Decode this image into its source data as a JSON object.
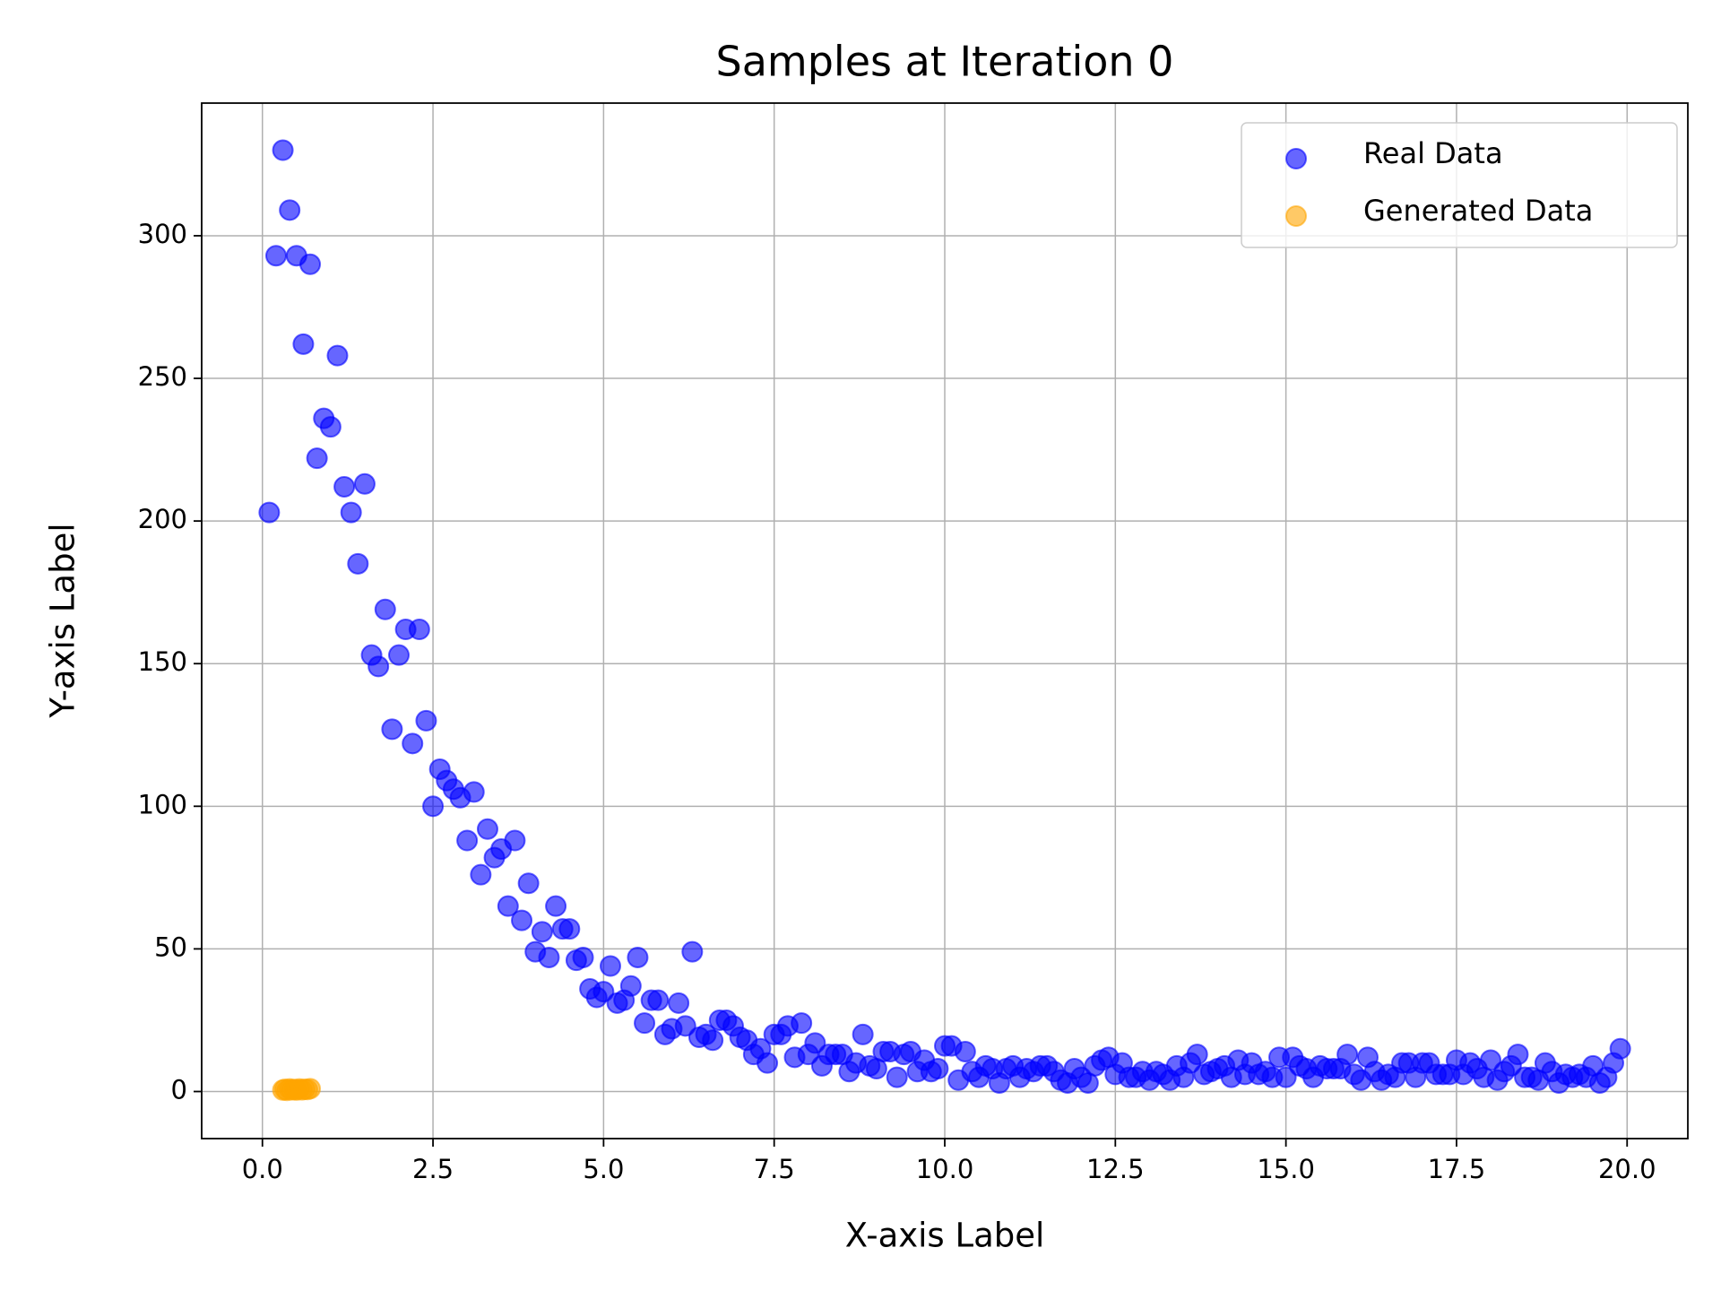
{
  "chart_data": {
    "type": "scatter",
    "title": "Samples at Iteration 0",
    "x_label": "X-axis Label",
    "y_label": "Y-axis Label",
    "xlim": [
      -0.89,
      20.89
    ],
    "ylim": [
      -16.5,
      346.5
    ],
    "xticks": [
      {
        "value": 0,
        "label": "0.0"
      },
      2.5,
      {
        "value": 5,
        "label": "5.0"
      },
      7.5,
      {
        "value": 10,
        "label": "10.0"
      },
      12.5,
      {
        "value": 15,
        "label": "15.0"
      },
      17.5,
      {
        "value": 20,
        "label": "20.0"
      }
    ],
    "yticks": [
      0,
      50,
      100,
      150,
      200,
      250,
      300
    ],
    "grid": true,
    "legend": "upper right",
    "series": [
      {
        "name": "Real Data",
        "color": "#0000ff",
        "x": [
          0.1,
          0.2,
          0.3,
          0.4,
          0.5,
          0.6,
          0.7,
          0.8,
          0.9,
          1.0,
          1.1,
          1.2,
          1.3,
          1.4,
          1.5,
          1.6,
          1.7,
          1.8,
          1.9,
          2.0,
          2.1,
          2.2,
          2.3,
          2.4,
          2.5,
          2.6,
          2.7,
          2.8,
          2.9,
          3.0,
          3.1,
          3.2,
          3.3,
          3.4,
          3.5,
          3.6,
          3.7,
          3.8,
          3.9,
          4.0,
          4.1,
          4.2,
          4.3,
          4.4,
          4.5,
          4.6,
          4.7,
          4.8,
          4.9,
          5.0,
          5.1,
          5.2,
          5.3,
          5.4,
          5.5,
          5.6,
          5.7,
          5.8,
          5.9,
          6.0,
          6.1,
          6.2,
          6.3,
          6.4,
          6.5,
          6.6,
          6.7,
          6.8,
          6.9,
          7.0,
          7.1,
          7.2,
          7.3,
          7.4,
          7.5,
          7.6,
          7.7,
          7.8,
          7.9,
          8.0,
          8.1,
          8.2,
          8.3,
          8.4,
          8.5,
          8.6,
          8.7,
          8.8,
          8.9,
          9.0,
          9.1,
          9.2,
          9.3,
          9.4,
          9.5,
          9.6,
          9.7,
          9.8,
          9.9,
          10.0,
          10.1,
          10.2,
          10.3,
          10.4,
          10.5,
          10.6,
          10.7,
          10.8,
          10.9,
          11.0,
          11.1,
          11.2,
          11.3,
          11.4,
          11.5,
          11.6,
          11.7,
          11.8,
          11.9,
          12.0,
          12.1,
          12.2,
          12.3,
          12.4,
          12.5,
          12.6,
          12.7,
          12.8,
          12.9,
          13.0,
          13.1,
          13.2,
          13.3,
          13.4,
          13.5,
          13.6,
          13.7,
          13.8,
          13.9,
          14.0,
          14.1,
          14.2,
          14.3,
          14.4,
          14.5,
          14.6,
          14.7,
          14.8,
          14.9,
          15.0,
          15.1,
          15.2,
          15.3,
          15.4,
          15.5,
          15.6,
          15.7,
          15.8,
          15.9,
          16.0,
          16.1,
          16.2,
          16.3,
          16.4,
          16.5,
          16.6,
          16.7,
          16.8,
          16.9,
          17.0,
          17.1,
          17.2,
          17.3,
          17.4,
          17.5,
          17.6,
          17.7,
          17.8,
          17.9,
          18.0,
          18.1,
          18.2,
          18.3,
          18.4,
          18.5,
          18.6,
          18.7,
          18.8,
          18.9,
          19.0,
          19.1,
          19.2,
          19.3,
          19.4,
          19.5,
          19.6,
          19.7,
          19.8,
          19.9
        ],
        "values": [
          203,
          293,
          330,
          309,
          293,
          262,
          290,
          222,
          236,
          233,
          258,
          212,
          203,
          185,
          213,
          153,
          149,
          169,
          127,
          153,
          162,
          122,
          162,
          130,
          100,
          113,
          109,
          106,
          103,
          88,
          105,
          76,
          92,
          82,
          85,
          65,
          88,
          60,
          73,
          49,
          56,
          47,
          65,
          57,
          57,
          46,
          47,
          36,
          33,
          35,
          44,
          31,
          32,
          37,
          47,
          24,
          32,
          32,
          20,
          22,
          31,
          23,
          49,
          19,
          20,
          18,
          25,
          25,
          23,
          19,
          18,
          13,
          15,
          10,
          20,
          20,
          23,
          12,
          24,
          13,
          17,
          9,
          13,
          13,
          13,
          7,
          10,
          20,
          9,
          8,
          14,
          14,
          5,
          13,
          14,
          7,
          11,
          7,
          8,
          16,
          16,
          4,
          14,
          7,
          5,
          9,
          8,
          3,
          8,
          9,
          5,
          8,
          7,
          9,
          9,
          7,
          4,
          3,
          8,
          5,
          3,
          9,
          11,
          12,
          6,
          10,
          5,
          5,
          7,
          4,
          7,
          6,
          4,
          9,
          5,
          10,
          13,
          6,
          7,
          8,
          9,
          5,
          11,
          6,
          10,
          6,
          7,
          5,
          12,
          5,
          12,
          9,
          8,
          5,
          9,
          8,
          8,
          8,
          13,
          6,
          4,
          12,
          7,
          4,
          6,
          5,
          10,
          10,
          5,
          10,
          10,
          6,
          6,
          6,
          11,
          6,
          10,
          8,
          5,
          11,
          4,
          7,
          9,
          13,
          5,
          5,
          4,
          10,
          7,
          3,
          6,
          5,
          6,
          5,
          9,
          3,
          5,
          10,
          15
        ]
      },
      {
        "name": "Generated Data",
        "color": "#ffa500",
        "x": [
          0.3,
          0.33,
          0.36,
          0.4,
          0.43,
          0.47,
          0.5,
          0.54,
          0.58,
          0.62,
          0.66,
          0.7
        ],
        "values": [
          0.5,
          0.8,
          0.4,
          0.9,
          0.6,
          0.7,
          0.5,
          0.9,
          0.6,
          0.8,
          0.7,
          1.0
        ]
      }
    ]
  }
}
